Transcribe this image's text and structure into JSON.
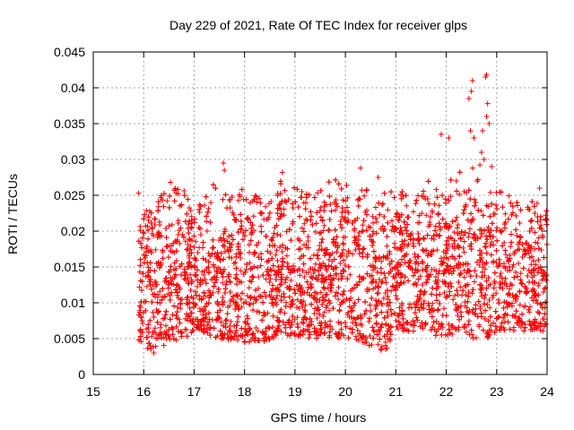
{
  "chart_data": {
    "type": "scatter",
    "title": "Day 229 of 2021, Rate Of TEC Index for receiver glps",
    "xlabel": "GPS time / hours",
    "ylabel": "ROTI / TECUs",
    "xlim": [
      15,
      24
    ],
    "ylim": [
      0,
      0.045
    ],
    "xticks": [
      "15",
      "16",
      "17",
      "18",
      "19",
      "20",
      "21",
      "22",
      "23",
      "24"
    ],
    "yticks": [
      "0",
      "0.005",
      "0.01",
      "0.015",
      "0.02",
      "0.025",
      "0.03",
      "0.035",
      "0.04",
      "0.045"
    ],
    "grid": true,
    "marker": "+",
    "series": [
      {
        "name": "ROTI",
        "color": "#ff0000",
        "envelope": {
          "note": "Dense point cloud; per-hour approximate lower/upper/center bounds read from the plot",
          "x": [
            15.9,
            16.0,
            16.2,
            16.5,
            16.8,
            17.0,
            17.5,
            18.0,
            18.5,
            18.7,
            19.0,
            19.5,
            20.0,
            20.5,
            20.8,
            21.0,
            21.5,
            22.0,
            22.3,
            22.5,
            22.8,
            23.0,
            23.5,
            24.0
          ],
          "low": [
            0.0045,
            0.004,
            0.003,
            0.0045,
            0.005,
            0.006,
            0.005,
            0.0045,
            0.0045,
            0.006,
            0.005,
            0.005,
            0.005,
            0.004,
            0.003,
            0.006,
            0.006,
            0.005,
            0.006,
            0.005,
            0.005,
            0.006,
            0.006,
            0.006
          ],
          "high": [
            0.025,
            0.023,
            0.023,
            0.027,
            0.026,
            0.022,
            0.03,
            0.026,
            0.024,
            0.028,
            0.026,
            0.028,
            0.027,
            0.029,
            0.027,
            0.026,
            0.025,
            0.033,
            0.041,
            0.041,
            0.042,
            0.026,
            0.025,
            0.024
          ],
          "center": [
            0.013,
            0.012,
            0.012,
            0.013,
            0.013,
            0.012,
            0.012,
            0.012,
            0.012,
            0.014,
            0.013,
            0.013,
            0.013,
            0.013,
            0.012,
            0.014,
            0.014,
            0.014,
            0.014,
            0.015,
            0.014,
            0.014,
            0.014,
            0.013
          ]
        },
        "outliers": [
          {
            "x": 15.9,
            "y": 0.0253
          },
          {
            "x": 17.58,
            "y": 0.0295
          },
          {
            "x": 17.6,
            "y": 0.0285
          },
          {
            "x": 18.75,
            "y": 0.0282
          },
          {
            "x": 20.3,
            "y": 0.0288
          },
          {
            "x": 20.65,
            "y": 0.0275
          },
          {
            "x": 21.9,
            "y": 0.0335
          },
          {
            "x": 22.05,
            "y": 0.033
          },
          {
            "x": 22.2,
            "y": 0.027
          },
          {
            "x": 22.45,
            "y": 0.0385
          },
          {
            "x": 22.5,
            "y": 0.0395
          },
          {
            "x": 22.52,
            "y": 0.041
          },
          {
            "x": 22.48,
            "y": 0.034
          },
          {
            "x": 22.55,
            "y": 0.033
          },
          {
            "x": 22.7,
            "y": 0.031
          },
          {
            "x": 22.72,
            "y": 0.034
          },
          {
            "x": 22.78,
            "y": 0.0415
          },
          {
            "x": 22.8,
            "y": 0.0418
          },
          {
            "x": 22.82,
            "y": 0.0378
          },
          {
            "x": 22.8,
            "y": 0.036
          },
          {
            "x": 22.85,
            "y": 0.035
          },
          {
            "x": 22.75,
            "y": 0.03
          },
          {
            "x": 22.9,
            "y": 0.029
          },
          {
            "x": 23.85,
            "y": 0.026
          },
          {
            "x": 20.8,
            "y": 0.0035
          },
          {
            "x": 16.2,
            "y": 0.003
          }
        ]
      }
    ]
  }
}
